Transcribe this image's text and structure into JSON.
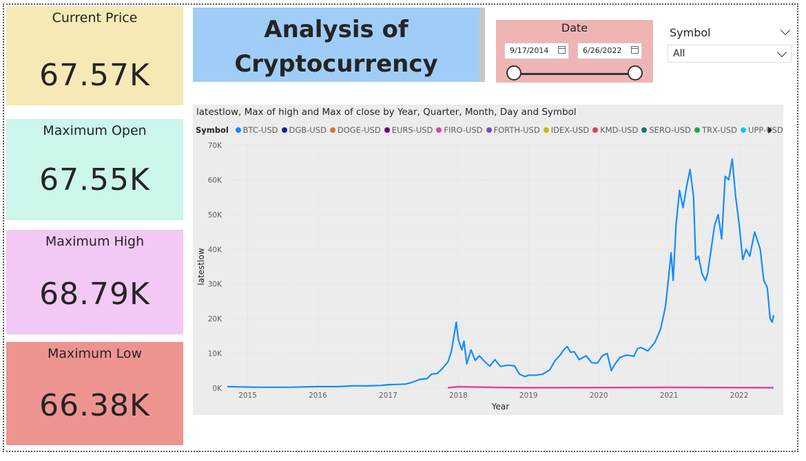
{
  "kpis": [
    {
      "label": "Current Price",
      "value": "67.57K",
      "color": "#f5e9b5"
    },
    {
      "label": "Maximum Open",
      "value": "67.55K",
      "color": "#ccf5ec"
    },
    {
      "label": "Maximum High",
      "value": "68.79K",
      "color": "#f2c8f5"
    },
    {
      "label": "Maximum Low",
      "value": "66.38K",
      "color": "#ed9491"
    }
  ],
  "title": {
    "line1": "Analysis of",
    "line2": "Cryptocurrency"
  },
  "date_filter": {
    "label": "Date",
    "start": "9/17/2014",
    "end": "6/26/2022"
  },
  "symbol_filter": {
    "label": "Symbol",
    "selected": "All"
  },
  "chart_data": {
    "type": "line",
    "title": "latestlow, Max of high and Max of close by Year, Quarter, Month, Day and Symbol",
    "xlabel": "Year",
    "ylabel": "latestlow",
    "legend_title": "Symbol",
    "legend_position": "top",
    "x_ticks": [
      "2015",
      "2016",
      "2017",
      "2018",
      "2019",
      "2020",
      "2021",
      "2022"
    ],
    "y_ticks": [
      "0K",
      "10K",
      "20K",
      "30K",
      "40K",
      "50K",
      "60K",
      "70K"
    ],
    "ylim": [
      0,
      70000
    ],
    "xlim": [
      2014.71,
      2022.49
    ],
    "grid": true,
    "series": [
      {
        "name": "BTC-USD",
        "color": "#118dff",
        "points": [
          [
            2014.71,
            420
          ],
          [
            2014.85,
            360
          ],
          [
            2015.0,
            300
          ],
          [
            2015.2,
            240
          ],
          [
            2015.45,
            230
          ],
          [
            2015.65,
            260
          ],
          [
            2015.85,
            380
          ],
          [
            2016.0,
            420
          ],
          [
            2016.3,
            420
          ],
          [
            2016.5,
            650
          ],
          [
            2016.7,
            610
          ],
          [
            2016.9,
            760
          ],
          [
            2017.0,
            970
          ],
          [
            2017.15,
            1050
          ],
          [
            2017.25,
            1150
          ],
          [
            2017.35,
            1700
          ],
          [
            2017.45,
            2500
          ],
          [
            2017.55,
            2700
          ],
          [
            2017.62,
            4000
          ],
          [
            2017.7,
            4200
          ],
          [
            2017.78,
            5800
          ],
          [
            2017.85,
            7500
          ],
          [
            2017.9,
            10500
          ],
          [
            2017.95,
            16500
          ],
          [
            2017.97,
            19000
          ],
          [
            2018.0,
            14000
          ],
          [
            2018.05,
            11000
          ],
          [
            2018.08,
            13500
          ],
          [
            2018.12,
            7000
          ],
          [
            2018.18,
            11000
          ],
          [
            2018.24,
            8000
          ],
          [
            2018.3,
            9300
          ],
          [
            2018.38,
            7500
          ],
          [
            2018.45,
            6300
          ],
          [
            2018.52,
            8200
          ],
          [
            2018.6,
            6200
          ],
          [
            2018.7,
            6600
          ],
          [
            2018.8,
            6400
          ],
          [
            2018.87,
            4000
          ],
          [
            2018.95,
            3300
          ],
          [
            2019.0,
            3700
          ],
          [
            2019.1,
            3700
          ],
          [
            2019.2,
            4000
          ],
          [
            2019.3,
            5200
          ],
          [
            2019.38,
            8000
          ],
          [
            2019.45,
            9500
          ],
          [
            2019.5,
            11000
          ],
          [
            2019.55,
            12000
          ],
          [
            2019.6,
            10300
          ],
          [
            2019.65,
            10500
          ],
          [
            2019.72,
            8200
          ],
          [
            2019.82,
            9300
          ],
          [
            2019.9,
            7300
          ],
          [
            2019.98,
            7200
          ],
          [
            2020.05,
            9300
          ],
          [
            2020.12,
            10000
          ],
          [
            2020.18,
            5000
          ],
          [
            2020.22,
            6600
          ],
          [
            2020.3,
            8800
          ],
          [
            2020.4,
            9500
          ],
          [
            2020.5,
            9200
          ],
          [
            2020.55,
            11300
          ],
          [
            2020.6,
            11700
          ],
          [
            2020.7,
            10700
          ],
          [
            2020.8,
            13200
          ],
          [
            2020.88,
            17000
          ],
          [
            2020.95,
            23500
          ],
          [
            2021.0,
            33000
          ],
          [
            2021.03,
            39000
          ],
          [
            2021.06,
            31000
          ],
          [
            2021.1,
            47000
          ],
          [
            2021.15,
            57000
          ],
          [
            2021.2,
            52000
          ],
          [
            2021.25,
            58000
          ],
          [
            2021.3,
            63000
          ],
          [
            2021.35,
            55000
          ],
          [
            2021.38,
            37000
          ],
          [
            2021.42,
            38000
          ],
          [
            2021.47,
            33000
          ],
          [
            2021.52,
            31000
          ],
          [
            2021.55,
            33000
          ],
          [
            2021.6,
            40000
          ],
          [
            2021.65,
            47000
          ],
          [
            2021.7,
            50000
          ],
          [
            2021.75,
            43000
          ],
          [
            2021.8,
            61000
          ],
          [
            2021.85,
            60000
          ],
          [
            2021.9,
            66000
          ],
          [
            2021.95,
            55000
          ],
          [
            2022.0,
            47000
          ],
          [
            2022.05,
            37000
          ],
          [
            2022.1,
            40000
          ],
          [
            2022.15,
            38000
          ],
          [
            2022.22,
            45000
          ],
          [
            2022.3,
            40000
          ],
          [
            2022.35,
            31000
          ],
          [
            2022.4,
            29000
          ],
          [
            2022.44,
            20000
          ],
          [
            2022.47,
            19000
          ],
          [
            2022.49,
            21000
          ]
        ]
      },
      {
        "name": "DGB-USD",
        "color": "#12239e"
      },
      {
        "name": "DOGE-USD",
        "color": "#e66c37"
      },
      {
        "name": "EURS-USD",
        "color": "#6b007b"
      },
      {
        "name": "FIRO-USD",
        "color": "#e044a7",
        "points": [
          [
            2017.85,
            100
          ],
          [
            2018.0,
            400
          ],
          [
            2018.5,
            200
          ],
          [
            2019.0,
            100
          ],
          [
            2021.0,
            200
          ],
          [
            2022.49,
            100
          ]
        ]
      },
      {
        "name": "FORTH-USD",
        "color": "#744ec2"
      },
      {
        "name": "IDEX-USD",
        "color": "#d9b300"
      },
      {
        "name": "KMD-USD",
        "color": "#d64550"
      },
      {
        "name": "SERO-USD",
        "color": "#197278"
      },
      {
        "name": "TRX-USD",
        "color": "#1aab40"
      },
      {
        "name": "UPP-USD",
        "color": "#15c6f4"
      }
    ]
  }
}
